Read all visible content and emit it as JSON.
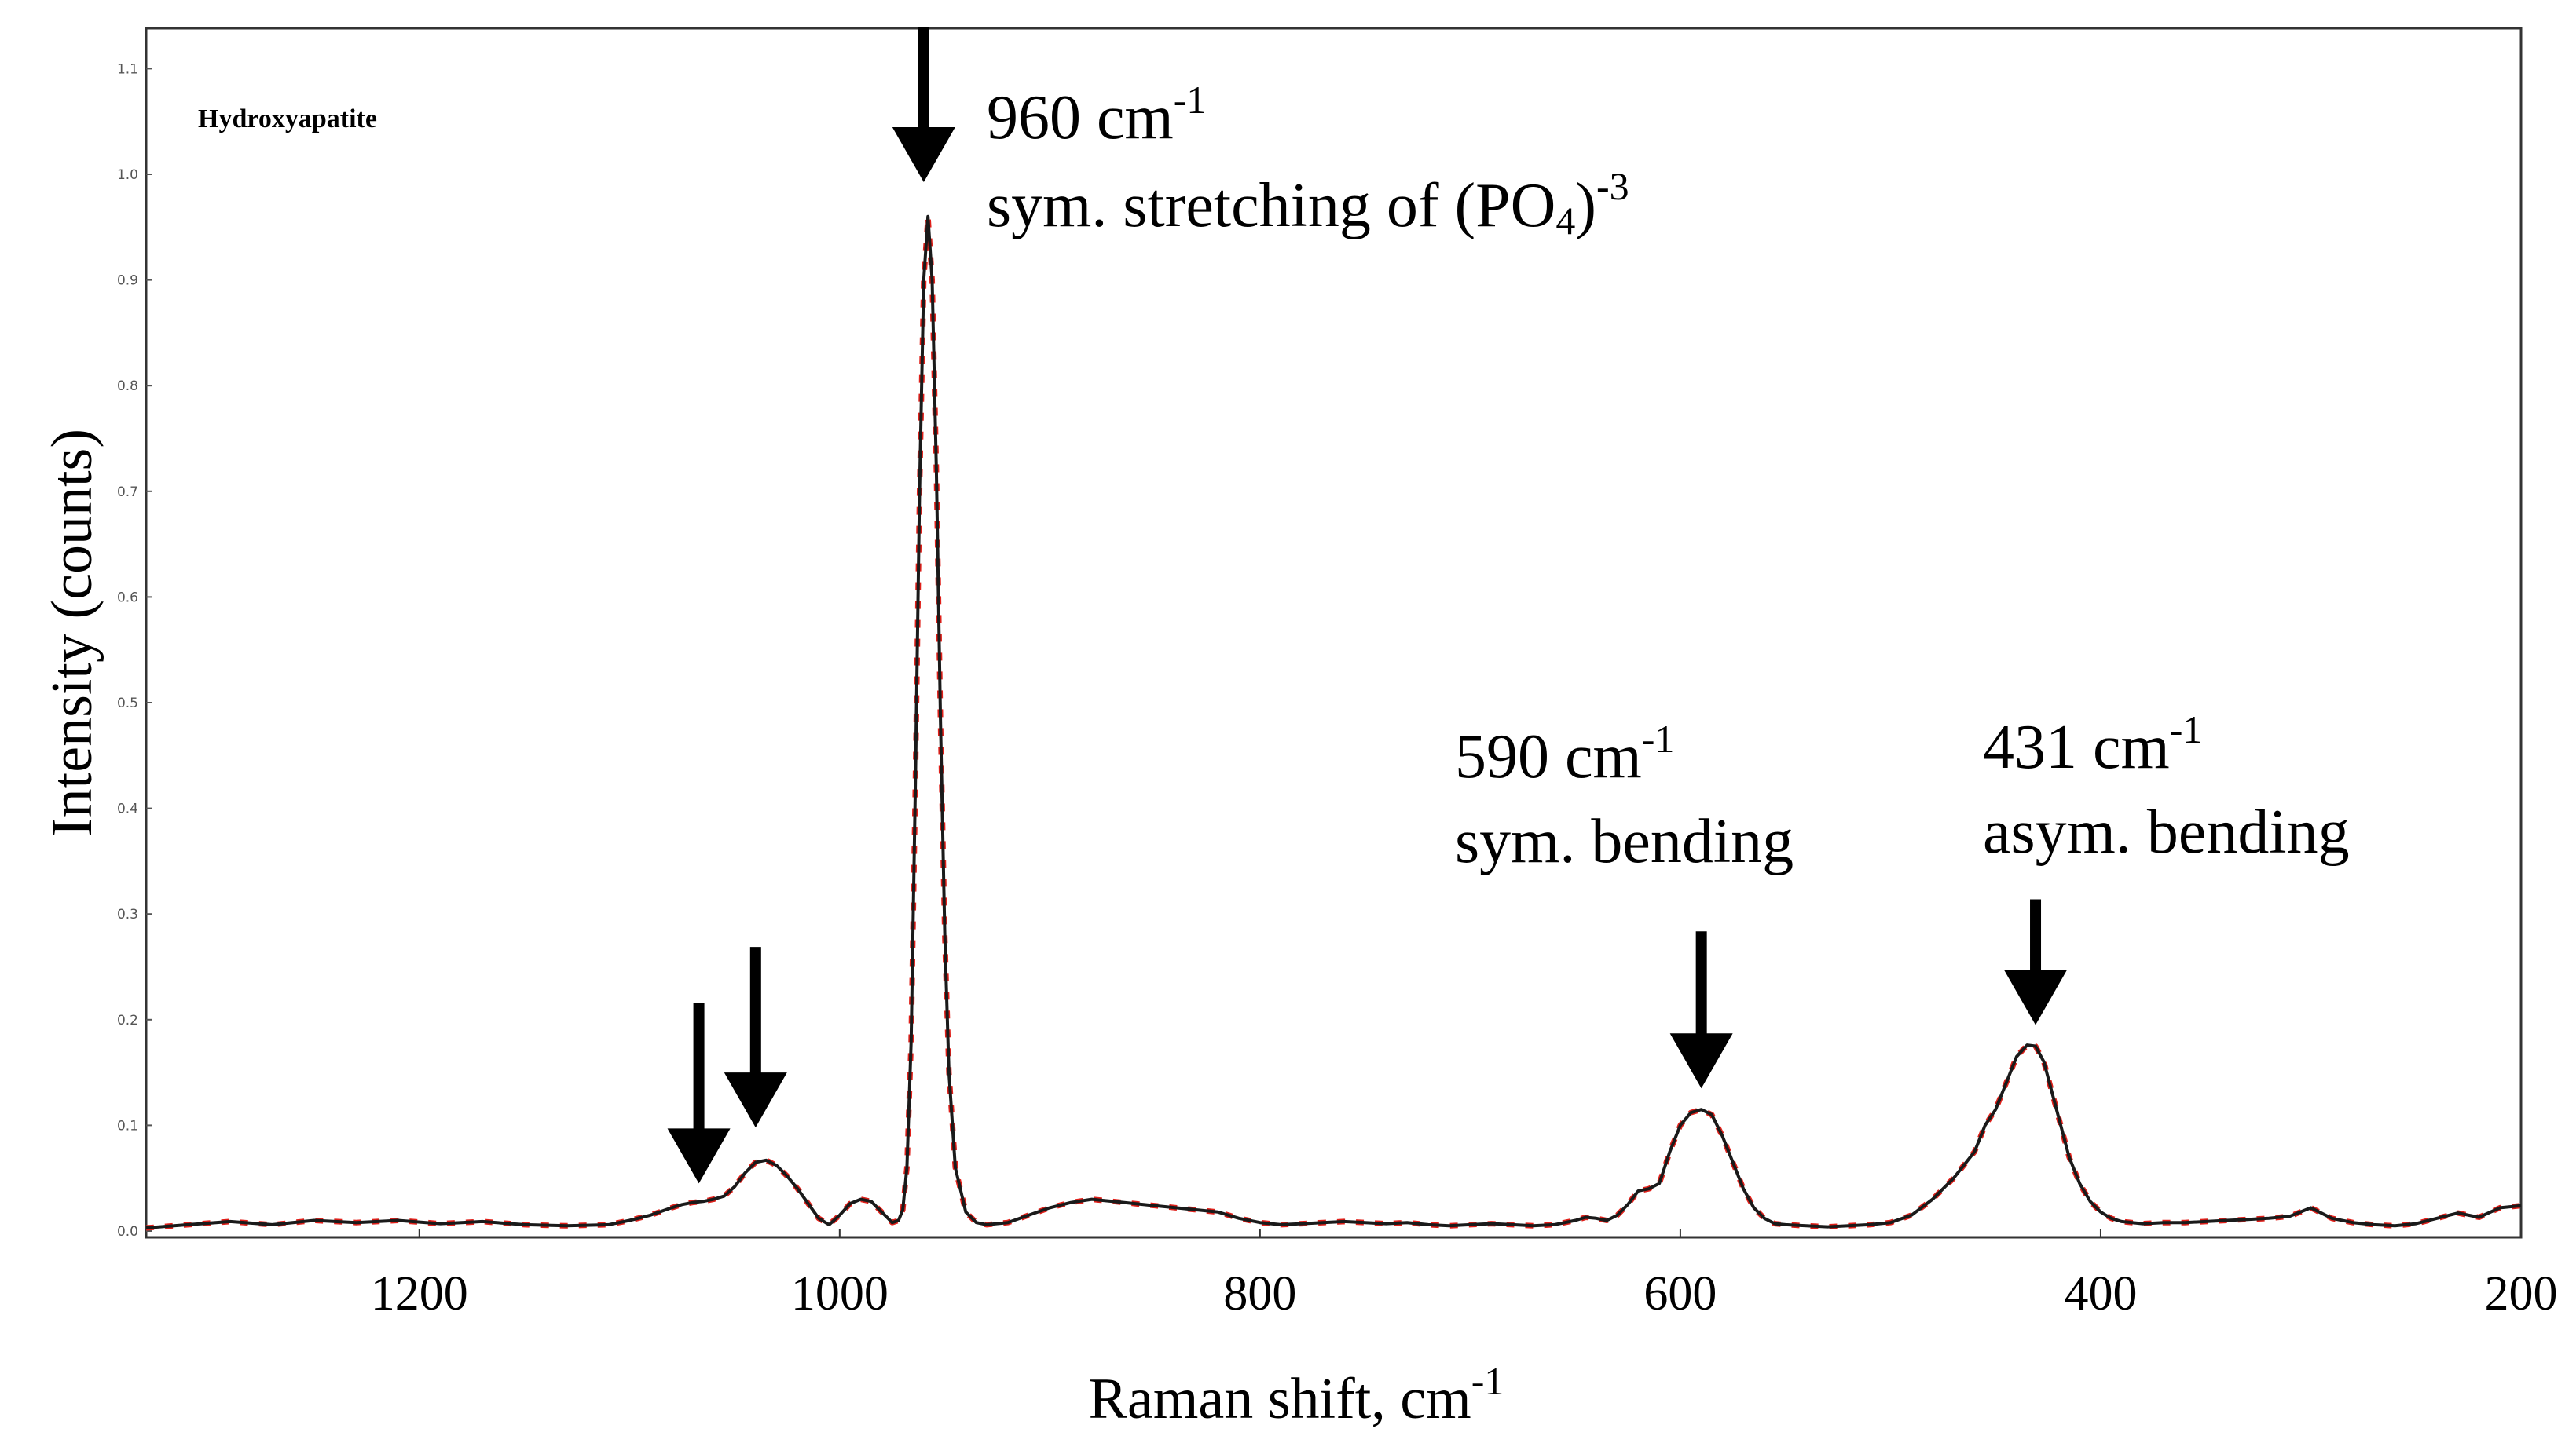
{
  "chart_data": {
    "type": "line",
    "title": "",
    "inset_label": "Hydroxyapatite",
    "xlabel": "Raman shift, cm",
    "xlabel_sup": "-1",
    "ylabel": "Intensity (counts)",
    "xlim": [
      1330,
      200
    ],
    "ylim": [
      0.0,
      1.12
    ],
    "x_ticks": [
      1200,
      1000,
      800,
      600,
      400,
      200
    ],
    "x_tick_labels": [
      "1200",
      "1000",
      "800",
      "600",
      "400",
      "200"
    ],
    "y_ticks": [
      0.0,
      0.1,
      0.2,
      0.3,
      0.4,
      0.5,
      0.6,
      0.7,
      0.8,
      0.9,
      1.0,
      1.1
    ],
    "y_tick_labels": [
      "0.0",
      "0.1",
      "0.2",
      "0.3",
      "0.4",
      "0.5",
      "0.6",
      "0.7",
      "0.8",
      "0.9",
      "1.0",
      "1.1"
    ],
    "grid": false,
    "series": [
      {
        "name": "Hydroxyapatite",
        "color": "#1a1a1a",
        "overlay_color": "#e0201a",
        "x": [
          1330,
          1310,
          1290,
          1270,
          1250,
          1230,
          1210,
          1190,
          1170,
          1150,
          1130,
          1110,
          1100,
          1090,
          1080,
          1075,
          1070,
          1065,
          1060,
          1055,
          1050,
          1045,
          1040,
          1035,
          1030,
          1025,
          1020,
          1015,
          1010,
          1005,
          1000,
          995,
          990,
          985,
          980,
          975,
          972,
          970,
          968,
          966,
          964,
          962,
          960,
          958,
          956,
          954,
          952,
          950,
          948,
          945,
          940,
          935,
          930,
          920,
          910,
          900,
          890,
          880,
          870,
          860,
          850,
          840,
          830,
          820,
          810,
          800,
          790,
          780,
          770,
          760,
          750,
          740,
          730,
          720,
          710,
          700,
          690,
          680,
          670,
          660,
          650,
          645,
          640,
          635,
          630,
          625,
          620,
          615,
          610,
          605,
          600,
          595,
          590,
          585,
          580,
          575,
          570,
          565,
          560,
          555,
          550,
          540,
          530,
          520,
          510,
          500,
          490,
          480,
          470,
          460,
          455,
          450,
          445,
          440,
          435,
          431,
          427,
          423,
          419,
          415,
          410,
          405,
          400,
          395,
          390,
          380,
          370,
          360,
          350,
          340,
          330,
          320,
          310,
          300,
          290,
          280,
          270,
          260,
          250,
          240,
          230,
          220,
          210,
          200
        ],
        "y": [
          0.003,
          0.006,
          0.009,
          0.006,
          0.01,
          0.008,
          0.01,
          0.007,
          0.009,
          0.006,
          0.005,
          0.006,
          0.01,
          0.015,
          0.022,
          0.025,
          0.027,
          0.028,
          0.03,
          0.033,
          0.042,
          0.055,
          0.065,
          0.067,
          0.062,
          0.052,
          0.04,
          0.026,
          0.012,
          0.006,
          0.015,
          0.026,
          0.03,
          0.028,
          0.018,
          0.008,
          0.01,
          0.02,
          0.06,
          0.18,
          0.42,
          0.7,
          0.9,
          0.96,
          0.9,
          0.72,
          0.48,
          0.28,
          0.15,
          0.06,
          0.018,
          0.008,
          0.006,
          0.008,
          0.015,
          0.022,
          0.027,
          0.03,
          0.028,
          0.026,
          0.024,
          0.022,
          0.02,
          0.018,
          0.012,
          0.008,
          0.006,
          0.007,
          0.008,
          0.009,
          0.008,
          0.007,
          0.008,
          0.006,
          0.005,
          0.006,
          0.007,
          0.006,
          0.005,
          0.006,
          0.01,
          0.013,
          0.012,
          0.01,
          0.015,
          0.025,
          0.038,
          0.04,
          0.045,
          0.075,
          0.1,
          0.112,
          0.115,
          0.11,
          0.09,
          0.065,
          0.04,
          0.022,
          0.012,
          0.007,
          0.006,
          0.005,
          0.004,
          0.005,
          0.006,
          0.008,
          0.015,
          0.03,
          0.05,
          0.075,
          0.1,
          0.115,
          0.14,
          0.165,
          0.176,
          0.175,
          0.16,
          0.13,
          0.1,
          0.07,
          0.045,
          0.028,
          0.018,
          0.012,
          0.009,
          0.007,
          0.008,
          0.008,
          0.009,
          0.01,
          0.011,
          0.012,
          0.014,
          0.022,
          0.012,
          0.008,
          0.006,
          0.005,
          0.007,
          0.012,
          0.017,
          0.013,
          0.022,
          0.024
        ]
      }
    ],
    "annotations": [
      {
        "x": 1067,
        "y_tip": 0.045,
        "label": ""
      },
      {
        "x": 1040,
        "y_tip": 0.098,
        "label": ""
      },
      {
        "x": 960,
        "y_tip": 1.04,
        "label_line1": "960 cm",
        "label_line1_sup": "-1",
        "label_line2a": "sym. stretching of (PO",
        "label_line2_sub": "4",
        "label_line2b": ")",
        "label_line2_sup": "-3"
      },
      {
        "x": 590,
        "y_tip": 0.135,
        "label_line1": "590 cm",
        "label_line1_sup": "-1",
        "label_line2": "sym. bending"
      },
      {
        "x": 431,
        "y_tip": 0.195,
        "label_line1": "431 cm",
        "label_line1_sup": "-1",
        "label_line2": "asym. bending"
      }
    ]
  }
}
